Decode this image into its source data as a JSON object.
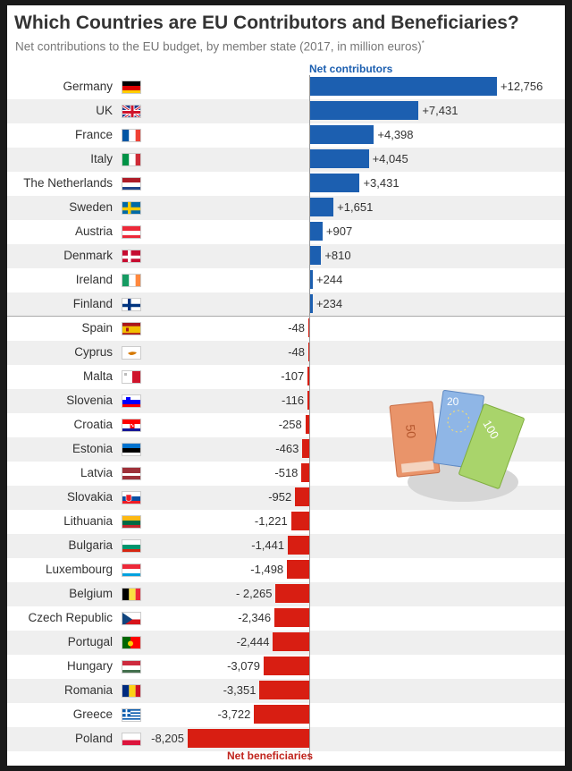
{
  "title": "Which Countries are EU Contributors and Beneficiaries?",
  "subtitle": "Net contributions to the EU budget, by member state (2017, in million euros)",
  "subtitle_mark": "*",
  "label_contributors": "Net contributors",
  "label_beneficiaries": "Net beneficiaries",
  "colors": {
    "contributor": "#1c5fb0",
    "beneficiary": "#d81e12"
  },
  "illustration": "euro-banknotes-icon",
  "chart_data": {
    "type": "bar",
    "orientation": "horizontal",
    "title": "Which Countries are EU Contributors and Beneficiaries?",
    "subtitle": "Net contributions to the EU budget, by member state (2017, in million euros)",
    "categories": [
      "Germany",
      "UK",
      "France",
      "Italy",
      "The Netherlands",
      "Sweden",
      "Austria",
      "Denmark",
      "Ireland",
      "Finland",
      "Spain",
      "Cyprus",
      "Malta",
      "Slovenia",
      "Croatia",
      "Estonia",
      "Latvia",
      "Slovakia",
      "Lithuania",
      "Bulgaria",
      "Luxembourg",
      "Belgium",
      "Czech Republic",
      "Portugal",
      "Hungary",
      "Romania",
      "Greece",
      "Poland"
    ],
    "values": [
      12756,
      7431,
      4398,
      4045,
      3431,
      1651,
      907,
      810,
      244,
      234,
      -48,
      -48,
      -107,
      -116,
      -258,
      -463,
      -518,
      -952,
      -1221,
      -1441,
      -1498,
      -2265,
      -2346,
      -2444,
      -3079,
      -3351,
      -3722,
      -8205
    ],
    "labels": [
      "+12,756",
      "+7,431",
      "+4,398",
      "+4,045",
      "+3,431",
      "+1,651",
      "+907",
      "+810",
      "+244",
      "+234",
      "-48",
      "-48",
      "-107",
      "-116",
      "-258",
      "-463",
      "-518",
      "-952",
      "-1,221",
      "-1,441",
      "-1,498",
      "- 2,265",
      "-2,346",
      "-2,444",
      "-3,079",
      "-3,351",
      "-3,722",
      "-8,205"
    ],
    "legend": [
      "Net contributors",
      "Net beneficiaries"
    ],
    "grid": false
  },
  "flags": {
    "Germany": "de",
    "UK": "uk",
    "France": "fr",
    "Italy": "it",
    "The Netherlands": "nl",
    "Sweden": "se",
    "Austria": "at",
    "Denmark": "dk",
    "Ireland": "ie",
    "Finland": "fi",
    "Spain": "es",
    "Cyprus": "cy",
    "Malta": "mt",
    "Slovenia": "si",
    "Croatia": "hr",
    "Estonia": "ee",
    "Latvia": "lv",
    "Slovakia": "sk",
    "Lithuania": "lt",
    "Bulgaria": "bg",
    "Luxembourg": "lu",
    "Belgium": "be",
    "Czech Republic": "cz",
    "Portugal": "pt",
    "Hungary": "hu",
    "Romania": "ro",
    "Greece": "gr",
    "Poland": "pl"
  }
}
